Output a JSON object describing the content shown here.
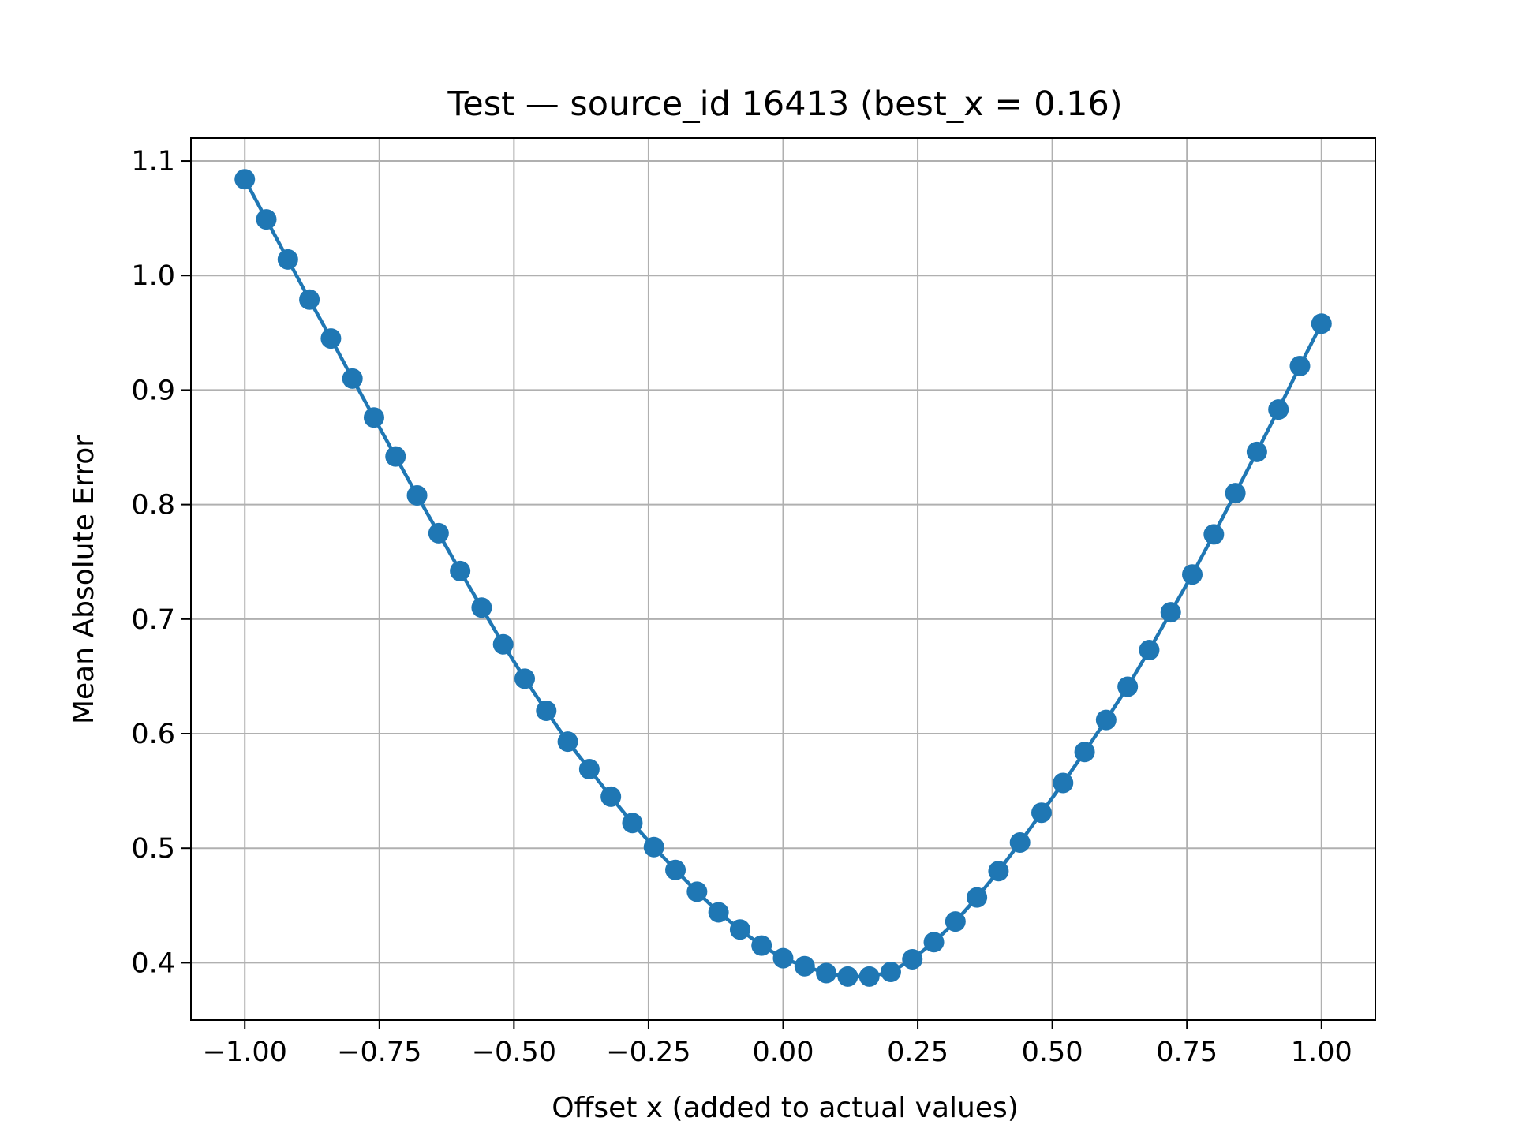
{
  "chart_data": {
    "type": "line",
    "title": "Test — source_id 16413 (best_x = 0.16)",
    "xlabel": "Offset x (added to actual values)",
    "ylabel": "Mean Absolute Error",
    "xlim": [
      -1.1,
      1.1
    ],
    "ylim": [
      0.35,
      1.12
    ],
    "grid": true,
    "marker": "circle",
    "colors": {
      "series": "#1f77b4"
    },
    "x_ticks": [
      -1.0,
      -0.75,
      -0.5,
      -0.25,
      0.0,
      0.25,
      0.5,
      0.75,
      1.0
    ],
    "x_tick_labels": [
      "−1.00",
      "−0.75",
      "−0.50",
      "−0.25",
      "0.00",
      "0.25",
      "0.50",
      "0.75",
      "1.00"
    ],
    "y_ticks": [
      0.4,
      0.5,
      0.6,
      0.7,
      0.8,
      0.9,
      1.0,
      1.1
    ],
    "y_tick_labels": [
      "0.4",
      "0.5",
      "0.6",
      "0.7",
      "0.8",
      "0.9",
      "1.0",
      "1.1"
    ],
    "series": [
      {
        "x": [
          -1.0,
          -0.96,
          -0.92,
          -0.88,
          -0.84,
          -0.8,
          -0.76,
          -0.72,
          -0.68,
          -0.64,
          -0.6,
          -0.56,
          -0.52,
          -0.48,
          -0.44,
          -0.4,
          -0.36,
          -0.32,
          -0.28,
          -0.24,
          -0.2,
          -0.16,
          -0.12,
          -0.08,
          -0.04,
          0.0,
          0.04,
          0.08,
          0.12,
          0.16,
          0.2,
          0.24,
          0.28,
          0.32,
          0.36,
          0.4,
          0.44,
          0.48,
          0.52,
          0.56,
          0.6,
          0.64,
          0.68,
          0.72,
          0.76,
          0.8,
          0.84,
          0.88,
          0.92,
          0.96,
          1.0
        ],
        "y": [
          1.084,
          1.049,
          1.014,
          0.979,
          0.945,
          0.91,
          0.876,
          0.842,
          0.808,
          0.775,
          0.742,
          0.71,
          0.678,
          0.648,
          0.62,
          0.593,
          0.569,
          0.545,
          0.522,
          0.501,
          0.481,
          0.462,
          0.444,
          0.429,
          0.415,
          0.404,
          0.397,
          0.391,
          0.388,
          0.388,
          0.392,
          0.403,
          0.418,
          0.436,
          0.457,
          0.48,
          0.505,
          0.531,
          0.557,
          0.584,
          0.612,
          0.641,
          0.673,
          0.706,
          0.739,
          0.774,
          0.81,
          0.846,
          0.883,
          0.921,
          0.958
        ]
      }
    ]
  }
}
